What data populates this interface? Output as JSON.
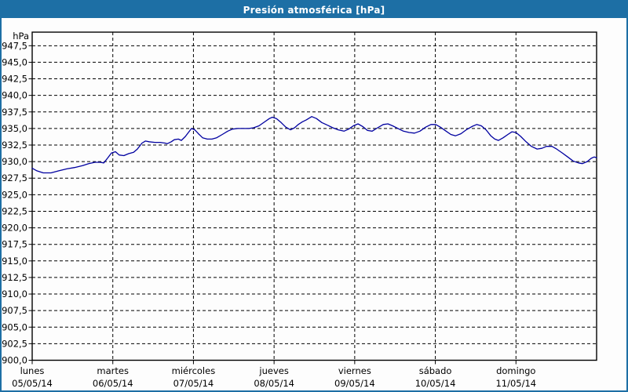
{
  "window": {
    "title": "Presión atmosférica [hPa]"
  },
  "colors": {
    "titlebar": "#1d6fa5",
    "window_border": "#1d6fa5",
    "background": "#fdfdfd",
    "grid": "#000000",
    "series_line": "#0000a0"
  },
  "chart_data": {
    "type": "line",
    "title": "Presión atmosférica [hPa]",
    "grid": {
      "style": "dashed",
      "color": "#000000"
    },
    "legend": "none",
    "y_axis": {
      "unit": "hPa",
      "min": 900,
      "max": 949.5,
      "tick_step": 2.5,
      "ticks": [
        {
          "label": "947,5",
          "value": 947.5
        },
        {
          "label": "945,0",
          "value": 945.0
        },
        {
          "label": "942,5",
          "value": 942.5
        },
        {
          "label": "940,0",
          "value": 940.0
        },
        {
          "label": "937,5",
          "value": 937.5
        },
        {
          "label": "935,0",
          "value": 935.0
        },
        {
          "label": "932,5",
          "value": 932.5
        },
        {
          "label": "930,0",
          "value": 930.0
        },
        {
          "label": "927,5",
          "value": 927.5
        },
        {
          "label": "925,0",
          "value": 925.0
        },
        {
          "label": "922,5",
          "value": 922.5
        },
        {
          "label": "920,0",
          "value": 920.0
        },
        {
          "label": "917,5",
          "value": 917.5
        },
        {
          "label": "915,0",
          "value": 915.0
        },
        {
          "label": "912,5",
          "value": 912.5
        },
        {
          "label": "910,0",
          "value": 910.0
        },
        {
          "label": "907,5",
          "value": 907.5
        },
        {
          "label": "905,0",
          "value": 905.0
        },
        {
          "label": "902,5",
          "value": 902.5
        },
        {
          "label": "900,0",
          "value": 900.0
        }
      ]
    },
    "x_axis": {
      "total_hours": 168,
      "days": [
        {
          "name": "lunes",
          "date": "05/05/14",
          "offset_hours": 0
        },
        {
          "name": "martes",
          "date": "06/05/14",
          "offset_hours": 24
        },
        {
          "name": "miércoles",
          "date": "07/05/14",
          "offset_hours": 48
        },
        {
          "name": "jueves",
          "date": "08/05/14",
          "offset_hours": 72
        },
        {
          "name": "viernes",
          "date": "09/05/14",
          "offset_hours": 96
        },
        {
          "name": "sábado",
          "date": "10/05/14",
          "offset_hours": 120
        },
        {
          "name": "domingo",
          "date": "11/05/14",
          "offset_hours": 144
        }
      ]
    },
    "series": [
      {
        "name": "Presión atmosférica",
        "unit": "hPa",
        "color": "#0000a0",
        "points_hours_hpa": [
          [
            0,
            929.0
          ],
          [
            1.4,
            928.6
          ],
          [
            3.3,
            928.3
          ],
          [
            5.6,
            928.3
          ],
          [
            7.9,
            928.6
          ],
          [
            10.3,
            928.9
          ],
          [
            12.6,
            929.1
          ],
          [
            15,
            929.4
          ],
          [
            16.8,
            929.7
          ],
          [
            18.7,
            929.9
          ],
          [
            20.3,
            929.9
          ],
          [
            21.3,
            929.8
          ],
          [
            22.4,
            930.5
          ],
          [
            23.6,
            931.3
          ],
          [
            24.8,
            931.5
          ],
          [
            25.9,
            931.0
          ],
          [
            27.3,
            930.9
          ],
          [
            28.7,
            931.2
          ],
          [
            30.2,
            931.4
          ],
          [
            31.3,
            931.9
          ],
          [
            32.7,
            932.8
          ],
          [
            33.7,
            933.1
          ],
          [
            34.8,
            933.0
          ],
          [
            36.5,
            932.9
          ],
          [
            38.1,
            932.9
          ],
          [
            39.5,
            932.8
          ],
          [
            40.2,
            932.7
          ],
          [
            41.4,
            933.0
          ],
          [
            42.3,
            933.3
          ],
          [
            43.5,
            933.4
          ],
          [
            44.4,
            933.2
          ],
          [
            45.6,
            933.8
          ],
          [
            46.5,
            934.4
          ],
          [
            47.4,
            935.0
          ],
          [
            48.4,
            934.8
          ],
          [
            49.5,
            934.2
          ],
          [
            50.7,
            933.6
          ],
          [
            52.1,
            933.4
          ],
          [
            53.5,
            933.4
          ],
          [
            54.9,
            933.6
          ],
          [
            56.6,
            934.1
          ],
          [
            58.2,
            934.6
          ],
          [
            59.6,
            934.9
          ],
          [
            61.2,
            935.0
          ],
          [
            62.9,
            935.0
          ],
          [
            64.5,
            935.0
          ],
          [
            65.9,
            935.1
          ],
          [
            67.5,
            935.4
          ],
          [
            69.2,
            936.0
          ],
          [
            70.6,
            936.5
          ],
          [
            71.5,
            936.7
          ],
          [
            72.7,
            936.5
          ],
          [
            74.1,
            935.9
          ],
          [
            75.5,
            935.2
          ],
          [
            76.9,
            934.8
          ],
          [
            78.1,
            935.1
          ],
          [
            79.2,
            935.6
          ],
          [
            80.4,
            936.0
          ],
          [
            81.6,
            936.3
          ],
          [
            83.2,
            936.8
          ],
          [
            84.6,
            936.5
          ],
          [
            86.2,
            935.9
          ],
          [
            87.9,
            935.5
          ],
          [
            89.5,
            935.1
          ],
          [
            91.1,
            934.8
          ],
          [
            92.8,
            934.6
          ],
          [
            94.2,
            934.9
          ],
          [
            95.6,
            935.4
          ],
          [
            97,
            935.7
          ],
          [
            98.4,
            935.3
          ],
          [
            99.8,
            934.7
          ],
          [
            101.2,
            934.6
          ],
          [
            102.8,
            935.1
          ],
          [
            104.5,
            935.6
          ],
          [
            105.9,
            935.7
          ],
          [
            107.3,
            935.4
          ],
          [
            108.9,
            935.0
          ],
          [
            110.5,
            934.6
          ],
          [
            112.2,
            934.4
          ],
          [
            113.8,
            934.3
          ],
          [
            115.4,
            934.6
          ],
          [
            117.1,
            935.2
          ],
          [
            118.7,
            935.6
          ],
          [
            120.1,
            935.6
          ],
          [
            121.5,
            935.2
          ],
          [
            123.2,
            934.6
          ],
          [
            124.6,
            934.1
          ],
          [
            126,
            933.9
          ],
          [
            127.6,
            934.2
          ],
          [
            129.2,
            934.8
          ],
          [
            130.9,
            935.3
          ],
          [
            132.3,
            935.6
          ],
          [
            133.7,
            935.4
          ],
          [
            135.1,
            934.8
          ],
          [
            136.5,
            933.9
          ],
          [
            137.7,
            933.4
          ],
          [
            138.8,
            933.2
          ],
          [
            140.2,
            933.6
          ],
          [
            141.6,
            934.1
          ],
          [
            142.8,
            934.5
          ],
          [
            144,
            934.4
          ],
          [
            145.4,
            933.8
          ],
          [
            147,
            933.0
          ],
          [
            148.6,
            932.3
          ],
          [
            150.3,
            931.9
          ],
          [
            151.7,
            932.0
          ],
          [
            153.1,
            932.3
          ],
          [
            154.7,
            932.3
          ],
          [
            156.1,
            931.9
          ],
          [
            157.8,
            931.3
          ],
          [
            159.4,
            930.7
          ],
          [
            161,
            930.1
          ],
          [
            162.6,
            929.8
          ],
          [
            163.8,
            929.7
          ],
          [
            165.2,
            930.0
          ],
          [
            166.4,
            930.5
          ],
          [
            167.3,
            930.7
          ],
          [
            168,
            930.6
          ]
        ]
      }
    ]
  }
}
